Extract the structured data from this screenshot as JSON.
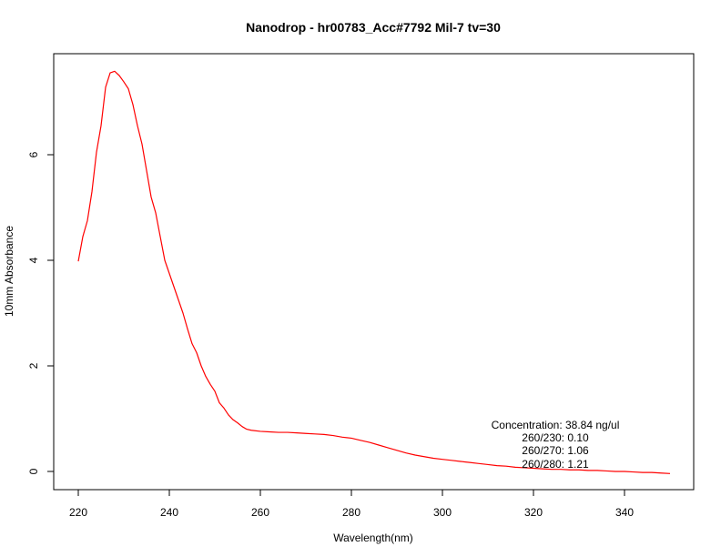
{
  "chart_data": {
    "type": "line",
    "title": "Nanodrop - hr00783_Acc#7792 Mil-7 tv=30",
    "xlabel": "Wavelength(nm)",
    "ylabel": "10mm Absorbance",
    "xlim": [
      220,
      350
    ],
    "ylim": [
      -0.05,
      7.6
    ],
    "x_ticks": [
      220,
      240,
      260,
      280,
      300,
      320,
      340
    ],
    "y_ticks": [
      0,
      2,
      4,
      6
    ],
    "grid": false,
    "legend": "none",
    "line_color": "#ff0000",
    "series": [
      {
        "x": [
          220,
          221,
          222,
          223,
          224,
          225,
          226,
          227,
          228,
          229,
          230,
          231,
          232,
          233,
          234,
          235,
          236,
          237,
          238,
          239,
          240,
          241,
          242,
          243,
          244,
          245,
          246,
          247,
          248,
          249,
          250,
          251,
          252,
          253,
          254,
          255,
          256,
          257,
          258,
          260,
          262,
          264,
          266,
          268,
          270,
          272,
          274,
          276,
          278,
          280,
          282,
          284,
          286,
          288,
          290,
          292,
          294,
          296,
          298,
          300,
          302,
          304,
          306,
          308,
          310,
          312,
          314,
          316,
          318,
          320,
          322,
          324,
          326,
          328,
          330,
          332,
          334,
          336,
          338,
          340,
          342,
          344,
          346,
          348,
          350
        ],
        "values": [
          3.98,
          4.45,
          4.75,
          5.3,
          6.05,
          6.55,
          7.28,
          7.55,
          7.58,
          7.5,
          7.38,
          7.25,
          6.95,
          6.55,
          6.2,
          5.7,
          5.2,
          4.9,
          4.45,
          4.0,
          3.75,
          3.5,
          3.25,
          3.0,
          2.7,
          2.42,
          2.25,
          2.0,
          1.8,
          1.65,
          1.52,
          1.3,
          1.2,
          1.07,
          0.98,
          0.92,
          0.85,
          0.8,
          0.78,
          0.76,
          0.75,
          0.74,
          0.74,
          0.73,
          0.72,
          0.71,
          0.7,
          0.68,
          0.65,
          0.63,
          0.59,
          0.55,
          0.5,
          0.45,
          0.4,
          0.35,
          0.31,
          0.28,
          0.25,
          0.23,
          0.21,
          0.19,
          0.17,
          0.15,
          0.13,
          0.11,
          0.1,
          0.08,
          0.07,
          0.06,
          0.05,
          0.04,
          0.04,
          0.03,
          0.03,
          0.02,
          0.02,
          0.01,
          0.0,
          0.0,
          -0.01,
          -0.02,
          -0.02,
          -0.03,
          -0.04
        ]
      }
    ],
    "annotations": [
      "Concentration: 38.84 ng/ul",
      "260/230: 0.10",
      "260/270: 1.06",
      "260/280: 1.21"
    ]
  }
}
